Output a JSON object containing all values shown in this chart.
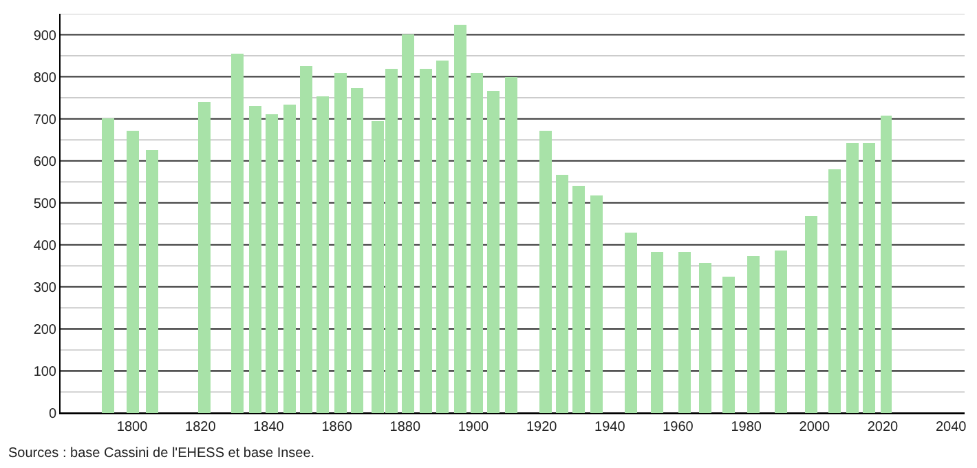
{
  "chart_data": {
    "type": "bar",
    "x": [
      1793,
      1800,
      1806,
      1821,
      1831,
      1836,
      1841,
      1846,
      1851,
      1856,
      1861,
      1866,
      1872,
      1876,
      1881,
      1886,
      1891,
      1896,
      1901,
      1906,
      1911,
      1921,
      1926,
      1931,
      1936,
      1946,
      1954,
      1962,
      1968,
      1975,
      1982,
      1990,
      1999,
      2006,
      2011,
      2016,
      2021
    ],
    "values": [
      700,
      670,
      625,
      740,
      855,
      730,
      710,
      735,
      825,
      755,
      808,
      772,
      695,
      820,
      900,
      820,
      840,
      925,
      810,
      768,
      800,
      670,
      568,
      540,
      517,
      430,
      382,
      384,
      357,
      323,
      374,
      387,
      470,
      580,
      642,
      642,
      706
    ],
    "color": "#a8e2a8",
    "xlim": [
      1779,
      2044
    ],
    "xticks": [
      1800,
      1820,
      1840,
      1860,
      1880,
      1900,
      1920,
      1940,
      1960,
      1980,
      2000,
      2020,
      2040
    ],
    "ylim": [
      0,
      950
    ],
    "yticks": [
      0,
      {
        "value": 50,
        "label": null
      },
      100,
      {
        "value": 150,
        "label": null
      },
      200,
      {
        "value": 250,
        "label": null
      },
      300,
      {
        "value": 350,
        "label": null
      },
      400,
      {
        "value": 450,
        "label": null
      },
      500,
      {
        "value": 550,
        "label": null
      },
      600,
      {
        "value": 650,
        "label": null
      },
      700,
      {
        "value": 750,
        "label": null
      },
      800,
      {
        "value": 850,
        "label": null
      },
      900,
      {
        "value": 950,
        "label": null
      }
    ],
    "grid": "y",
    "annotations": [
      "Sources : base Cassini de l'EHESS et base Insee."
    ]
  }
}
